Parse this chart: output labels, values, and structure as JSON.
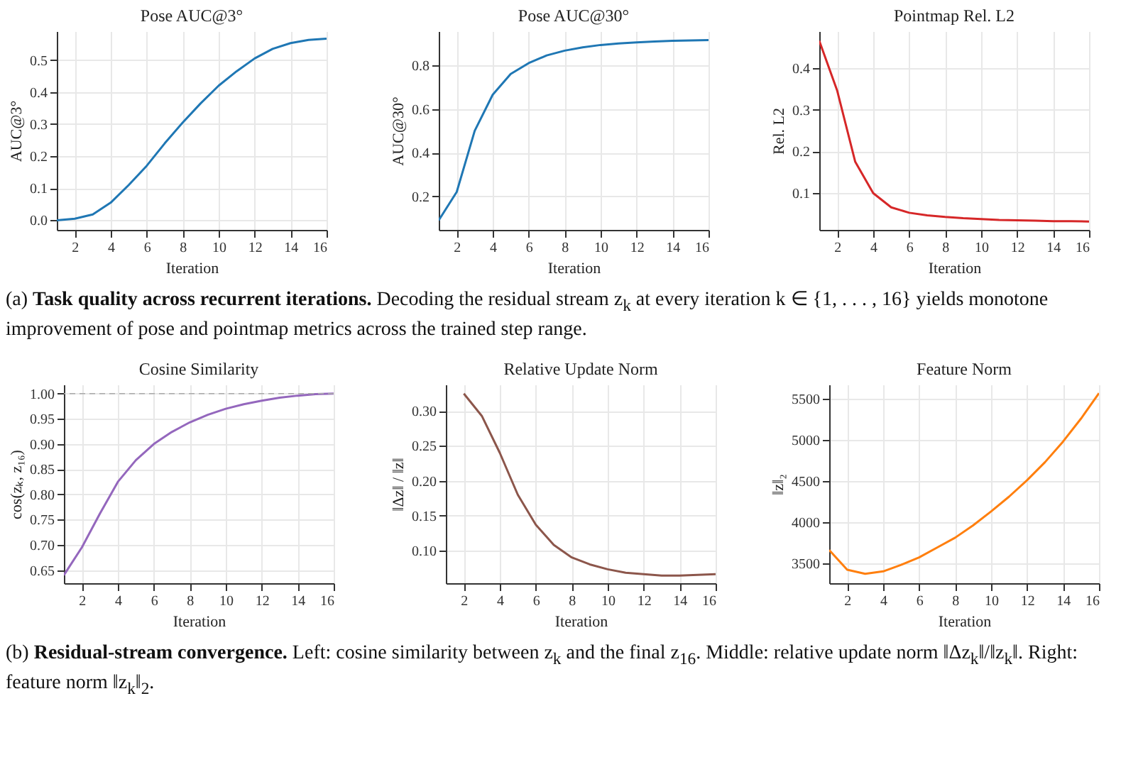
{
  "chart_data": [
    {
      "type": "line",
      "title": "Pose AUC@3°",
      "xlabel": "Iteration",
      "ylabel": "AUC@3°",
      "x": [
        1,
        2,
        3,
        4,
        5,
        6,
        7,
        8,
        9,
        10,
        11,
        12,
        13,
        14,
        15,
        16
      ],
      "xlim": [
        1,
        16
      ],
      "xticks": [
        2,
        4,
        6,
        8,
        10,
        12,
        14,
        16
      ],
      "ylim": [
        -0.03,
        0.59
      ],
      "yticks": [
        {
          "value": 0,
          "label": "0.0"
        },
        0.1,
        0.2,
        0.3,
        0.4,
        0.5
      ],
      "grid": true,
      "series": [
        {
          "color": "#1f77b4",
          "values": [
            0.0,
            0.005,
            0.018,
            0.055,
            0.11,
            0.17,
            0.24,
            0.305,
            0.365,
            0.42,
            0.465,
            0.505,
            0.535,
            0.553,
            0.563,
            0.567
          ]
        }
      ],
      "annotations": [
        "(a) Task quality across recurrent iterations. Decoding the residual stream z$_{k}$ at every iteration k ∈ {1, . . . , 16} yields monotone improvement of pose and pointmap metrics across the trained step range."
      ]
    },
    {
      "type": "line",
      "title": "Pose AUC@30°",
      "xlabel": "Iteration",
      "ylabel": "AUC@30°",
      "x": [
        1,
        2,
        3,
        4,
        5,
        6,
        7,
        8,
        9,
        10,
        11,
        12,
        13,
        14,
        15,
        16
      ],
      "xlim": [
        1,
        16
      ],
      "xticks": [
        2,
        4,
        6,
        8,
        10,
        12,
        14,
        16
      ],
      "ylim": [
        0.046,
        0.956
      ],
      "yticks": [
        0.2,
        0.4,
        0.6,
        0.8
      ],
      "grid": true,
      "series": [
        {
          "color": "#1f77b4",
          "values": [
            0.09,
            0.22,
            0.5,
            0.665,
            0.76,
            0.81,
            0.845,
            0.867,
            0.882,
            0.893,
            0.9,
            0.905,
            0.909,
            0.912,
            0.914,
            0.915
          ]
        }
      ]
    },
    {
      "type": "line",
      "title": "Pointmap Rel. L2",
      "xlabel": "Iteration",
      "ylabel": "Rel. L2",
      "x": [
        1,
        2,
        3,
        4,
        5,
        6,
        7,
        8,
        9,
        10,
        11,
        12,
        13,
        14,
        15,
        16
      ],
      "xlim": [
        1,
        16
      ],
      "xticks": [
        2,
        4,
        6,
        8,
        10,
        12,
        14,
        16
      ],
      "ylim": [
        0.012,
        0.488
      ],
      "yticks": [
        0.1,
        0.2,
        0.3,
        0.4
      ],
      "grid": true,
      "series": [
        {
          "color": "#d62728",
          "values": [
            0.465,
            0.345,
            0.175,
            0.1,
            0.066,
            0.053,
            0.047,
            0.043,
            0.04,
            0.038,
            0.036,
            0.035,
            0.034,
            0.033,
            0.033,
            0.032
          ]
        }
      ]
    },
    {
      "type": "line",
      "title": "Cosine Similarity",
      "xlabel": "Iteration",
      "ylabel": "cos(zₖ, z₁₆)",
      "x": [
        1,
        2,
        3,
        4,
        5,
        6,
        7,
        8,
        9,
        10,
        11,
        12,
        13,
        14,
        15,
        16
      ],
      "xlim": [
        1,
        16
      ],
      "xticks": [
        2,
        4,
        6,
        8,
        10,
        12,
        14,
        16
      ],
      "ylim": [
        0.624,
        1.018
      ],
      "yticks": [
        {
          "value": 0.65,
          "label": "0.65"
        },
        {
          "value": 0.7,
          "label": "0.70"
        },
        0.75,
        {
          "value": 0.8,
          "label": "0.80"
        },
        0.85,
        {
          "value": 0.9,
          "label": "0.90"
        },
        0.95,
        {
          "value": 1,
          "label": "1.00"
        }
      ],
      "grid": true,
      "ref_lines": [
        {
          "axis": "y",
          "value": 1,
          "color": "#aaaaaa",
          "line_style": "dashed"
        }
      ],
      "series": [
        {
          "color": "#9467bd",
          "values": [
            0.64,
            0.695,
            0.762,
            0.825,
            0.868,
            0.9,
            0.924,
            0.943,
            0.958,
            0.97,
            0.979,
            0.986,
            0.992,
            0.996,
            0.999,
            1.0
          ]
        }
      ],
      "annotations": [
        "(b) Residual-stream convergence. Left: cosine similarity between z$_{k}$ and the final z$_{16}$. Middle: relative update norm ‖Δz$_{k}$‖/‖z$_{k}$‖. Right: feature norm ‖z$_{k}$‖$_{2}$."
      ]
    },
    {
      "type": "line",
      "title": "Relative Update Norm",
      "xlabel": "Iteration",
      "ylabel": "‖Δz‖ / ‖z‖",
      "xlim": [
        1,
        16
      ],
      "xticks": [
        2,
        4,
        6,
        8,
        10,
        12,
        14,
        16
      ],
      "ylim": [
        0.053,
        0.338
      ],
      "yticks": [
        {
          "value": 0.1,
          "label": "0.10"
        },
        0.15,
        {
          "value": 0.2,
          "label": "0.20"
        },
        0.25,
        {
          "value": 0.3,
          "label": "0.30"
        }
      ],
      "grid": true,
      "series": [
        {
          "color": "#8c564b",
          "x": [
            2,
            3,
            4,
            5,
            6,
            7,
            8,
            9,
            10,
            11,
            12,
            13,
            14,
            15,
            16
          ],
          "values": [
            0.325,
            0.293,
            0.24,
            0.18,
            0.137,
            0.108,
            0.09,
            0.08,
            0.073,
            0.068,
            0.066,
            0.064,
            0.064,
            0.065,
            0.066
          ]
        }
      ]
    },
    {
      "type": "line",
      "title": "Feature Norm",
      "xlabel": "Iteration",
      "ylabel": "‖z‖₂",
      "x": [
        1,
        2,
        3,
        4,
        5,
        6,
        7,
        8,
        9,
        10,
        11,
        12,
        13,
        14,
        15,
        16
      ],
      "xlim": [
        1,
        16
      ],
      "xticks": [
        2,
        4,
        6,
        8,
        10,
        12,
        14,
        16
      ],
      "ylim": [
        3256,
        5675
      ],
      "yticks": [
        3500,
        4000,
        4500,
        5000,
        5500
      ],
      "grid": true,
      "series": [
        {
          "color": "#ff7f0e",
          "values": [
            3660,
            3420,
            3370,
            3400,
            3480,
            3570,
            3690,
            3810,
            3960,
            4130,
            4310,
            4510,
            4730,
            4980,
            5260,
            5570
          ]
        }
      ]
    }
  ]
}
